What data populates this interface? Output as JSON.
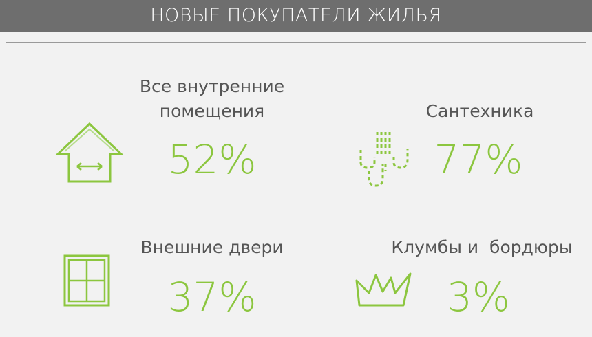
{
  "header": {
    "title": "НОВЫЕ ПОКУПАТЕЛИ ЖИЛЬЯ"
  },
  "items": [
    {
      "label": "Все внутренние помещения",
      "value": "52%"
    },
    {
      "label": "Сантехника",
      "value": "77%"
    },
    {
      "label": "Внешние двери",
      "value": "37%"
    },
    {
      "label": "Клумбы и  бордюры",
      "value": "3%"
    }
  ]
}
